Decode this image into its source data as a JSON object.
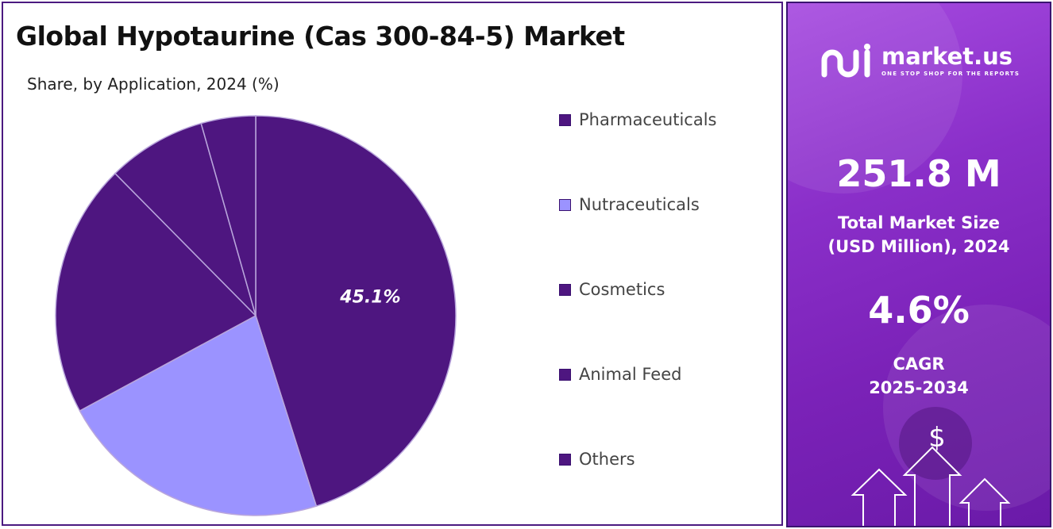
{
  "chart_data": {
    "type": "pie",
    "title": "Global Hypotaurine (Cas 300-84-5) Market",
    "subtitle": "Share, by Application, 2024 (%)",
    "categories": [
      "Pharmaceuticals",
      "Nutraceuticals",
      "Cosmetics",
      "Animal Feed",
      "Others"
    ],
    "values": [
      45.1,
      22.0,
      20.5,
      8.0,
      4.4
    ],
    "colors": [
      "#4e1680",
      "#9b93ff",
      "#4e1680",
      "#4e1680",
      "#4e1680"
    ],
    "data_labels": [
      "45.1%",
      "",
      "",
      "",
      ""
    ],
    "legend_position": "right",
    "start_angle_deg": 0,
    "direction": "clockwise"
  },
  "legend_colors": [
    "#4e1680",
    "#9b93ff",
    "#4e1680",
    "#4e1680",
    "#4e1680"
  ],
  "sidebar": {
    "brand_name": "market.us",
    "brand_tagline": "ONE STOP SHOP FOR THE REPORTS",
    "market_size_value": "251.8 M",
    "market_size_label_line1": "Total Market Size",
    "market_size_label_line2": "(USD Million), 2024",
    "cagr_value": "4.6%",
    "cagr_label_line1": "CAGR",
    "cagr_label_line2": "2025-2034",
    "currency_symbol": "$",
    "background_color": "#8a2fc9"
  }
}
